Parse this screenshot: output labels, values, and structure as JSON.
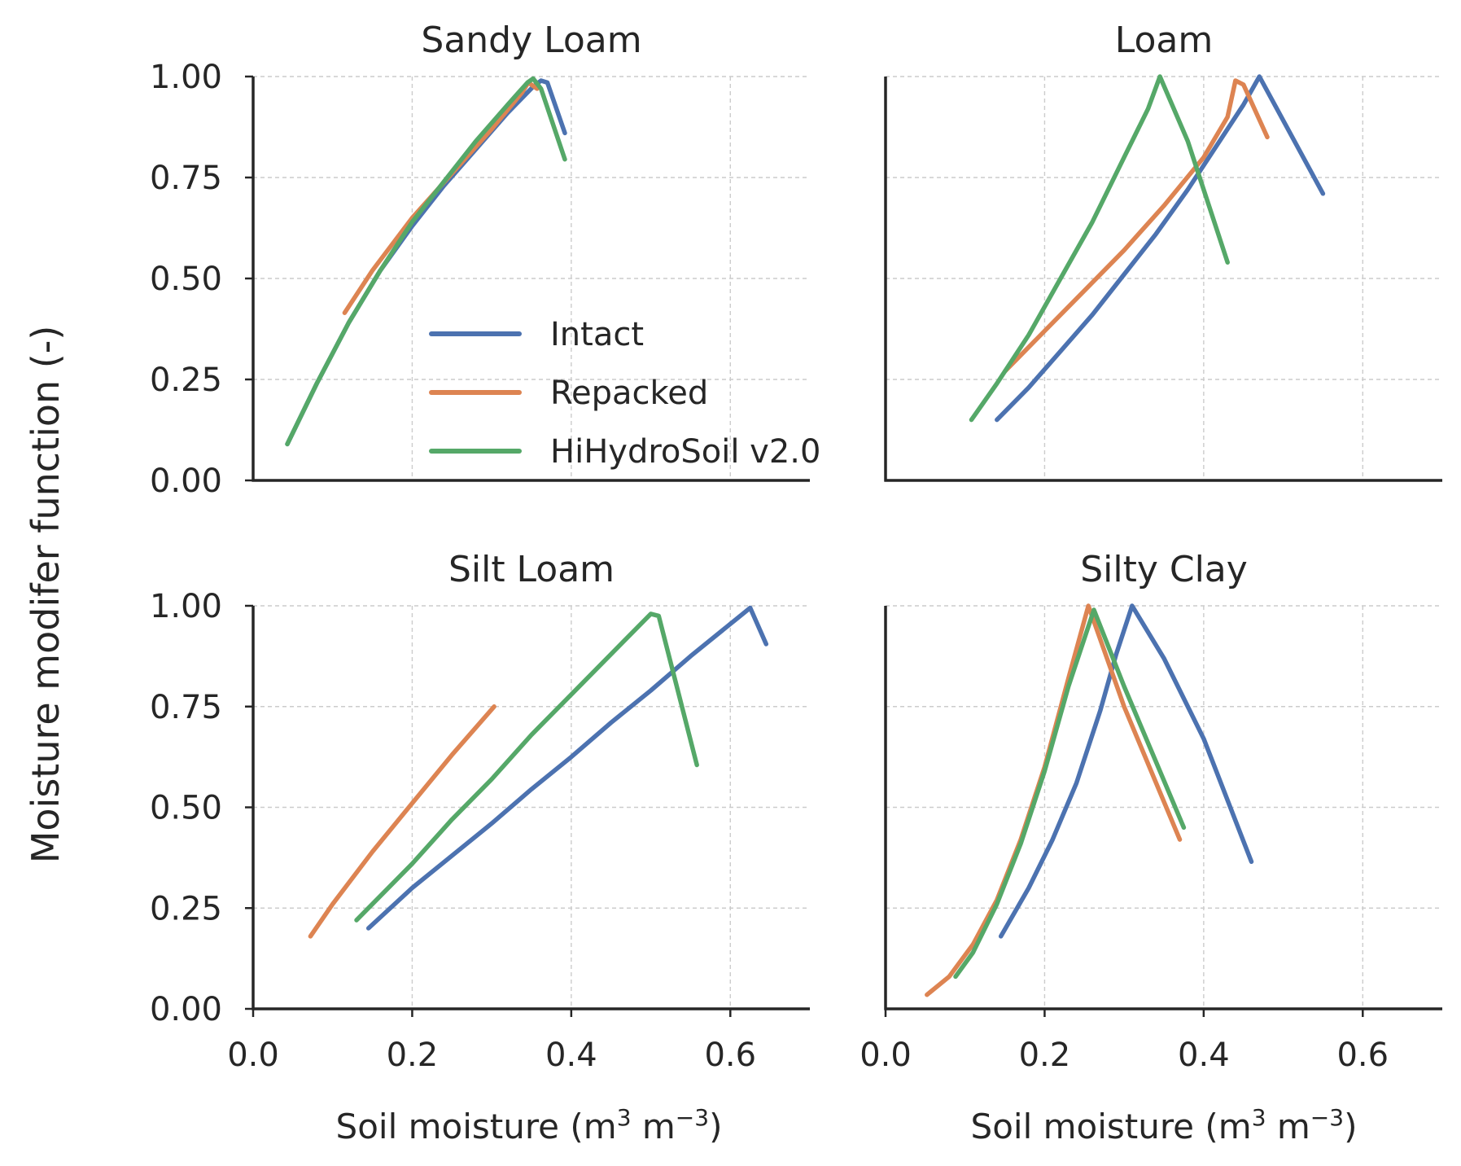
{
  "figure": {
    "ylabel": "Moisture modifer function (-)",
    "xlabel_prefix": "Soil moisture (m",
    "xlabel_sup1": "3",
    "xlabel_mid": " m",
    "xlabel_sup2": "−3",
    "xlabel_suffix": ")",
    "colors": {
      "Intact": "#4c72b0",
      "Repacked": "#dd8452",
      "HiHydroSoil v2.0": "#55a868"
    },
    "legend": {
      "entries": [
        "Intact",
        "Repacked",
        "HiHydroSoil v2.0"
      ],
      "placement": "lower-right of top-left panel"
    }
  },
  "chart_data": [
    {
      "type": "line",
      "title": "Sandy Loam",
      "xlabel": "",
      "ylabel": "",
      "xlim": [
        0,
        0.7
      ],
      "ylim": [
        0,
        1.0
      ],
      "xticks": [
        "0.0",
        "0.2",
        "0.4",
        "0.6"
      ],
      "yticks": [
        "0.00",
        "0.25",
        "0.50",
        "0.75",
        "1.00"
      ],
      "grid": true,
      "series": [
        {
          "name": "Intact",
          "x": [
            0.043,
            0.08,
            0.12,
            0.16,
            0.2,
            0.24,
            0.28,
            0.32,
            0.352,
            0.362,
            0.37,
            0.392
          ],
          "y": [
            0.09,
            0.24,
            0.39,
            0.52,
            0.63,
            0.73,
            0.82,
            0.91,
            0.975,
            0.99,
            0.985,
            0.86
          ]
        },
        {
          "name": "Repacked",
          "x": [
            0.115,
            0.15,
            0.2,
            0.25,
            0.3,
            0.338,
            0.346,
            0.357
          ],
          "y": [
            0.415,
            0.52,
            0.65,
            0.76,
            0.87,
            0.96,
            0.985,
            0.97
          ]
        },
        {
          "name": "HiHydroSoil v2.0",
          "x": [
            0.043,
            0.08,
            0.12,
            0.16,
            0.2,
            0.24,
            0.28,
            0.32,
            0.345,
            0.352,
            0.362,
            0.392
          ],
          "y": [
            0.09,
            0.24,
            0.39,
            0.52,
            0.64,
            0.74,
            0.84,
            0.93,
            0.985,
            0.995,
            0.97,
            0.795
          ]
        }
      ]
    },
    {
      "type": "line",
      "title": "Loam",
      "xlabel": "",
      "ylabel": "",
      "xlim": [
        0,
        0.7
      ],
      "ylim": [
        0,
        1.0
      ],
      "xticks": [
        "0.0",
        "0.2",
        "0.4",
        "0.6"
      ],
      "yticks": [
        "0.00",
        "0.25",
        "0.50",
        "0.75",
        "1.00"
      ],
      "grid": true,
      "series": [
        {
          "name": "Intact",
          "x": [
            0.14,
            0.18,
            0.22,
            0.26,
            0.3,
            0.34,
            0.38,
            0.42,
            0.45,
            0.47,
            0.55
          ],
          "y": [
            0.15,
            0.23,
            0.32,
            0.41,
            0.51,
            0.61,
            0.72,
            0.84,
            0.93,
            1.0,
            0.71
          ]
        },
        {
          "name": "Repacked",
          "x": [
            0.15,
            0.2,
            0.25,
            0.3,
            0.35,
            0.4,
            0.43,
            0.44,
            0.45,
            0.48
          ],
          "y": [
            0.27,
            0.37,
            0.47,
            0.57,
            0.68,
            0.8,
            0.9,
            0.99,
            0.98,
            0.85
          ]
        },
        {
          "name": "HiHydroSoil v2.0",
          "x": [
            0.108,
            0.14,
            0.18,
            0.22,
            0.26,
            0.3,
            0.33,
            0.345,
            0.38,
            0.43
          ],
          "y": [
            0.15,
            0.24,
            0.36,
            0.5,
            0.64,
            0.8,
            0.92,
            1.0,
            0.84,
            0.54
          ]
        }
      ]
    },
    {
      "type": "line",
      "title": "Silt Loam",
      "xlabel": "Soil moisture (m3 m−3)",
      "ylabel": "",
      "xlim": [
        0,
        0.7
      ],
      "ylim": [
        0,
        1.0
      ],
      "xticks": [
        "0.0",
        "0.2",
        "0.4",
        "0.6"
      ],
      "yticks": [
        "0.00",
        "0.25",
        "0.50",
        "0.75",
        "1.00"
      ],
      "grid": true,
      "series": [
        {
          "name": "Intact",
          "x": [
            0.145,
            0.2,
            0.25,
            0.3,
            0.35,
            0.4,
            0.45,
            0.5,
            0.55,
            0.6,
            0.625,
            0.645
          ],
          "y": [
            0.2,
            0.3,
            0.38,
            0.46,
            0.545,
            0.625,
            0.71,
            0.79,
            0.875,
            0.955,
            0.995,
            0.905
          ]
        },
        {
          "name": "Repacked",
          "x": [
            0.072,
            0.1,
            0.15,
            0.2,
            0.25,
            0.303
          ],
          "y": [
            0.18,
            0.26,
            0.39,
            0.51,
            0.63,
            0.75
          ]
        },
        {
          "name": "HiHydroSoil v2.0",
          "x": [
            0.13,
            0.2,
            0.25,
            0.3,
            0.35,
            0.4,
            0.45,
            0.5,
            0.51,
            0.558
          ],
          "y": [
            0.22,
            0.36,
            0.47,
            0.57,
            0.68,
            0.78,
            0.88,
            0.98,
            0.975,
            0.605
          ]
        }
      ]
    },
    {
      "type": "line",
      "title": "Silty Clay",
      "xlabel": "Soil moisture (m3 m−3)",
      "ylabel": "",
      "xlim": [
        0,
        0.7
      ],
      "ylim": [
        0,
        1.0
      ],
      "xticks": [
        "0.0",
        "0.2",
        "0.4",
        "0.6"
      ],
      "yticks": [
        "0.00",
        "0.25",
        "0.50",
        "0.75",
        "1.00"
      ],
      "grid": true,
      "series": [
        {
          "name": "Intact",
          "x": [
            0.145,
            0.18,
            0.21,
            0.24,
            0.27,
            0.29,
            0.31,
            0.35,
            0.4,
            0.46
          ],
          "y": [
            0.18,
            0.3,
            0.42,
            0.56,
            0.74,
            0.88,
            1.0,
            0.87,
            0.67,
            0.365
          ]
        },
        {
          "name": "Repacked",
          "x": [
            0.052,
            0.08,
            0.11,
            0.14,
            0.17,
            0.2,
            0.23,
            0.255,
            0.3,
            0.37
          ],
          "y": [
            0.035,
            0.08,
            0.16,
            0.27,
            0.42,
            0.6,
            0.82,
            1.0,
            0.75,
            0.42
          ]
        },
        {
          "name": "HiHydroSoil v2.0",
          "x": [
            0.088,
            0.11,
            0.14,
            0.17,
            0.2,
            0.23,
            0.262,
            0.3,
            0.375
          ],
          "y": [
            0.08,
            0.14,
            0.26,
            0.41,
            0.59,
            0.8,
            0.99,
            0.8,
            0.45
          ]
        }
      ]
    }
  ]
}
